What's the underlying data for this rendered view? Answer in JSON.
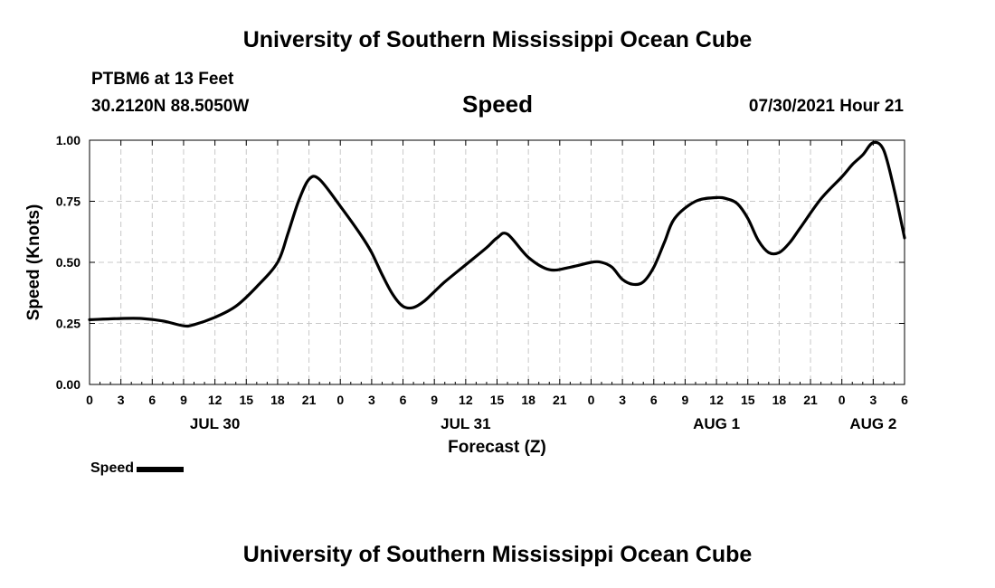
{
  "header": {
    "title": "University of Southern Mississippi Ocean Cube",
    "station": "PTBM6 at 13 Feet",
    "coords": "30.2120N  88.5050W",
    "variable": "Speed",
    "timestamp": "07/30/2021 Hour 21"
  },
  "footer": {
    "title": "University of Southern Mississippi Ocean Cube"
  },
  "legend": {
    "label": "Speed"
  },
  "chart_data": {
    "type": "line",
    "title": "Speed",
    "xlabel": "Forecast (Z)",
    "ylabel": "Speed (Knots)",
    "ylim": [
      0,
      1.0
    ],
    "xlim": [
      0,
      78
    ],
    "grid": true,
    "y_ticks": [
      {
        "value": 0.0,
        "label": "0.00"
      },
      {
        "value": 0.25,
        "label": "0.25"
      },
      {
        "value": 0.5,
        "label": "0.50"
      },
      {
        "value": 0.75,
        "label": "0.75"
      },
      {
        "value": 1.0,
        "label": "1.00"
      }
    ],
    "x_ticks": [
      {
        "hour": 0,
        "label": "0"
      },
      {
        "hour": 3,
        "label": "3"
      },
      {
        "hour": 6,
        "label": "6"
      },
      {
        "hour": 9,
        "label": "9"
      },
      {
        "hour": 12,
        "label": "12"
      },
      {
        "hour": 15,
        "label": "15"
      },
      {
        "hour": 18,
        "label": "18"
      },
      {
        "hour": 21,
        "label": "21"
      },
      {
        "hour": 24,
        "label": "0"
      },
      {
        "hour": 27,
        "label": "3"
      },
      {
        "hour": 30,
        "label": "6"
      },
      {
        "hour": 33,
        "label": "9"
      },
      {
        "hour": 36,
        "label": "12"
      },
      {
        "hour": 39,
        "label": "15"
      },
      {
        "hour": 42,
        "label": "18"
      },
      {
        "hour": 45,
        "label": "21"
      },
      {
        "hour": 48,
        "label": "0"
      },
      {
        "hour": 51,
        "label": "3"
      },
      {
        "hour": 54,
        "label": "6"
      },
      {
        "hour": 57,
        "label": "9"
      },
      {
        "hour": 60,
        "label": "12"
      },
      {
        "hour": 63,
        "label": "15"
      },
      {
        "hour": 66,
        "label": "18"
      },
      {
        "hour": 69,
        "label": "21"
      },
      {
        "hour": 72,
        "label": "0"
      },
      {
        "hour": 75,
        "label": "3"
      },
      {
        "hour": 78,
        "label": "6"
      }
    ],
    "date_labels": [
      {
        "hour": 12,
        "label": "JUL 30"
      },
      {
        "hour": 36,
        "label": "JUL 31"
      },
      {
        "hour": 60,
        "label": "AUG 1"
      },
      {
        "hour": 75,
        "label": "AUG 2"
      }
    ],
    "series": [
      {
        "name": "Speed",
        "x": [
          0,
          3,
          5,
          7,
          9,
          10,
          12,
          14,
          16,
          18,
          19,
          20,
          21,
          22,
          24,
          26,
          27,
          28,
          29,
          30,
          31,
          32,
          33,
          34,
          36,
          38,
          39,
          40,
          42,
          44,
          46,
          48,
          49,
          50,
          51,
          52,
          53,
          54,
          55,
          56,
          58,
          60,
          61,
          62,
          63,
          64,
          65,
          66,
          67,
          68,
          70,
          72,
          73,
          74,
          75,
          76,
          77,
          78
        ],
        "y": [
          0.265,
          0.27,
          0.27,
          0.26,
          0.24,
          0.245,
          0.275,
          0.32,
          0.4,
          0.5,
          0.62,
          0.75,
          0.84,
          0.84,
          0.73,
          0.61,
          0.54,
          0.45,
          0.37,
          0.32,
          0.315,
          0.34,
          0.38,
          0.42,
          0.49,
          0.56,
          0.6,
          0.615,
          0.52,
          0.47,
          0.48,
          0.5,
          0.5,
          0.48,
          0.43,
          0.41,
          0.42,
          0.48,
          0.58,
          0.68,
          0.75,
          0.765,
          0.76,
          0.74,
          0.68,
          0.59,
          0.54,
          0.54,
          0.58,
          0.64,
          0.76,
          0.85,
          0.9,
          0.94,
          0.99,
          0.96,
          0.8,
          0.6
        ]
      }
    ]
  }
}
